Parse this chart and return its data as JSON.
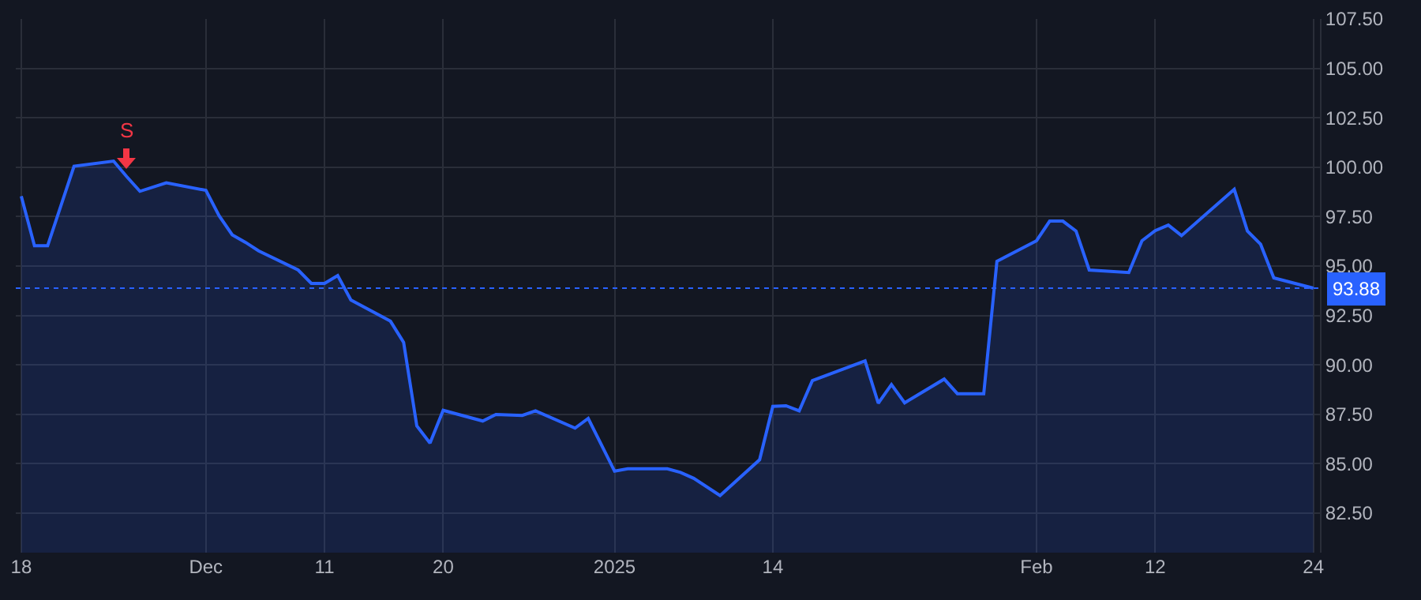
{
  "chart_data": {
    "type": "area",
    "x": [
      "2024-11-18",
      "2024-11-19",
      "2024-11-20",
      "2024-11-21",
      "2024-11-22",
      "2024-11-25",
      "2024-11-26",
      "2024-11-27",
      "2024-11-29",
      "2024-12-02",
      "2024-12-03",
      "2024-12-04",
      "2024-12-05",
      "2024-12-06",
      "2024-12-09",
      "2024-12-10",
      "2024-12-11",
      "2024-12-12",
      "2024-12-13",
      "2024-12-16",
      "2024-12-17",
      "2024-12-18",
      "2024-12-19",
      "2024-12-20",
      "2024-12-23",
      "2024-12-24",
      "2024-12-26",
      "2024-12-27",
      "2024-12-30",
      "2024-12-31",
      "2025-01-02",
      "2025-01-03",
      "2025-01-06",
      "2025-01-07",
      "2025-01-08",
      "2025-01-10",
      "2025-01-13",
      "2025-01-14",
      "2025-01-15",
      "2025-01-16",
      "2025-01-17",
      "2025-01-21",
      "2025-01-22",
      "2025-01-23",
      "2025-01-24",
      "2025-01-27",
      "2025-01-28",
      "2025-01-29",
      "2025-01-30",
      "2025-01-31",
      "2025-02-03",
      "2025-02-04",
      "2025-02-05",
      "2025-02-06",
      "2025-02-07",
      "2025-02-10",
      "2025-02-11",
      "2025-02-12",
      "2025-02-13",
      "2025-02-14",
      "2025-02-18",
      "2025-02-19",
      "2025-02-20",
      "2025-02-21",
      "2025-02-24"
    ],
    "series": [
      {
        "color": "#2962ff",
        "values": [
          98.53,
          96.03,
          96.03,
          98.04,
          100.05,
          100.31,
          99.52,
          98.78,
          99.21,
          98.83,
          97.55,
          96.58,
          96.2,
          95.77,
          94.8,
          94.12,
          94.12,
          94.52,
          93.28,
          92.21,
          91.14,
          86.91,
          86.04,
          87.7,
          87.16,
          87.49,
          87.44,
          87.67,
          86.8,
          87.29,
          84.62,
          84.74,
          84.74,
          84.56,
          84.26,
          83.39,
          85.2,
          87.9,
          87.93,
          87.67,
          89.2,
          90.2,
          88.06,
          89.0,
          88.08,
          89.28,
          88.54,
          88.54,
          88.54,
          95.24,
          96.28,
          97.27,
          97.27,
          96.77,
          94.8,
          94.67,
          96.28,
          96.79,
          97.07,
          96.54,
          98.88,
          96.77,
          96.1,
          94.4,
          93.88
        ]
      }
    ],
    "xlim": [
      "2024-11-17T14:00",
      "2025-02-24T12:00"
    ],
    "xticks": [
      {
        "value": "2024-11-18",
        "label": "18"
      },
      {
        "value": "2024-12-02",
        "label": "Dec"
      },
      {
        "value": "2024-12-11",
        "label": "11"
      },
      {
        "value": "2024-12-20",
        "label": "20"
      },
      {
        "value": "2025-01-02",
        "label": "2025"
      },
      {
        "value": "2025-01-14",
        "label": "14"
      },
      {
        "value": "2025-02-03",
        "label": "Feb"
      },
      {
        "value": "2025-02-12",
        "label": "12"
      },
      {
        "value": "2025-02-24",
        "label": "24"
      }
    ],
    "ylim": [
      80.5,
      107.5
    ],
    "yticks": [
      {
        "value": 82.5,
        "label": "82.50"
      },
      {
        "value": 85,
        "label": "85.00"
      },
      {
        "value": 87.5,
        "label": "87.50"
      },
      {
        "value": 90,
        "label": "90.00"
      },
      {
        "value": 92.5,
        "label": "92.50"
      },
      {
        "value": 95,
        "label": "95.00"
      },
      {
        "value": 97.5,
        "label": "97.50"
      },
      {
        "value": 100,
        "label": "100.00"
      },
      {
        "value": 102.5,
        "label": "102.50"
      },
      {
        "value": 105,
        "label": "105.00"
      },
      {
        "value": 107.5,
        "label": "107.50"
      }
    ],
    "ref_lines": [
      {
        "axis": "y",
        "value": 93.88,
        "label": "93.88",
        "color": "#2962ff",
        "line_style": "dotted"
      }
    ],
    "annotations": [
      {
        "text": "S",
        "x": "2024-11-26",
        "y": 99.52
      }
    ],
    "grid": true,
    "marker": "none",
    "line_style": "solid"
  }
}
